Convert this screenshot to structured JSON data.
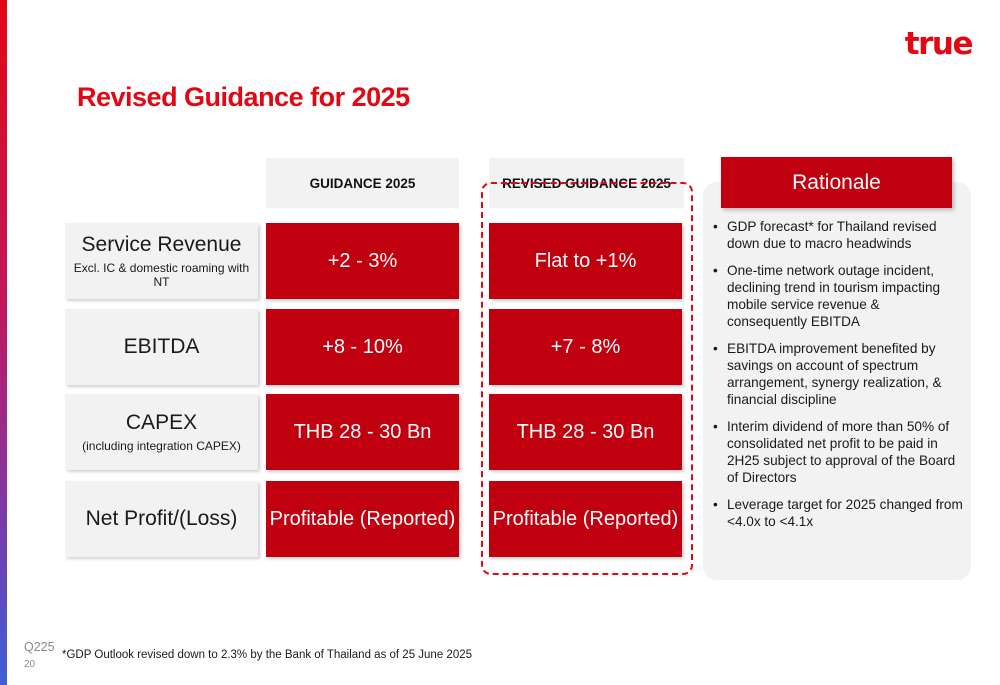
{
  "header": {
    "logo_text": "true",
    "title": "Revised Guidance for 2025"
  },
  "columns": {
    "guidance": "GUIDANCE 2025",
    "revised": "REVISED GUIDANCE 2025"
  },
  "rows": [
    {
      "label": "Service Revenue",
      "sublabel": "Excl. IC & domestic roaming with NT",
      "guidance": "+2 - 3%",
      "revised": "Flat to +1%"
    },
    {
      "label": "EBITDA",
      "sublabel": "",
      "guidance": "+8 - 10%",
      "revised": "+7 - 8%"
    },
    {
      "label": "CAPEX",
      "sublabel": "(including integration CAPEX)",
      "guidance": "THB 28 - 30 Bn",
      "revised": "THB 28 - 30 Bn"
    },
    {
      "label": "Net Profit/(Loss)",
      "sublabel": "",
      "guidance": "Profitable (Reported)",
      "revised": "Profitable (Reported)"
    }
  ],
  "rationale": {
    "title": "Rationale",
    "bullet_symbol": "•",
    "items": [
      "GDP forecast* for Thailand revised down due to macro headwinds",
      "One-time network outage incident, declining trend in tourism impacting mobile service revenue & consequently EBITDA",
      "EBITDA improvement benefited by savings on account of spectrum arrangement, synergy realization, & financial discipline",
      "Interim dividend of more than 50% of consolidated net profit to be paid in 2H25 subject to approval of the Board of Directors",
      "Leverage target for 2025 changed from <4.0x to <4.1x"
    ]
  },
  "footer": {
    "period": "Q225",
    "page_number": "20",
    "footnote": "*GDP Outlook revised down to 2.3% by the Bank of Thailand as of 25 June 2025"
  },
  "colors": {
    "brand_red": "#e30613",
    "cell_red": "#c1000f",
    "panel_grey": "#f2f2f2"
  }
}
